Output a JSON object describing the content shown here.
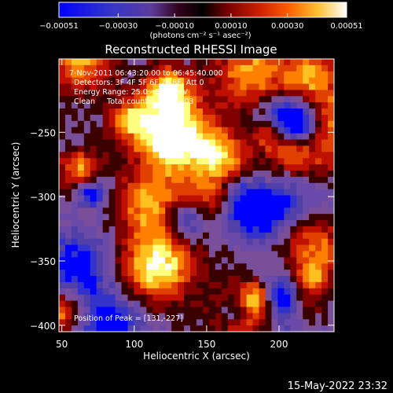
{
  "colorbar": {
    "ticks": [
      "-0.00051",
      "-0.00030",
      "-0.00010",
      "0.00010",
      "0.00030",
      "0.00051"
    ],
    "unit_label": "(photons cm⁻² s⁻¹ asec⁻²)"
  },
  "chart_data": {
    "type": "heatmap",
    "title": "Reconstructed RHESSI Image",
    "xlabel": "Heliocentric X (arcsec)",
    "ylabel": "Heliocentric Y (arcsec)",
    "xlim": [
      48,
      238
    ],
    "ylim": [
      -405,
      -193
    ],
    "x_ticks": [
      "50",
      "100",
      "150",
      "200"
    ],
    "y_ticks": [
      "-250",
      "-300",
      "-350",
      "-400"
    ],
    "colorbar_range": [
      -0.00051,
      0.00051
    ],
    "annotations": [
      "7-Nov-2011 06:43:20.00 to 06:45:40.000",
      "Detectors: 3F 4F 5F 6F 7F 8F, Att 0",
      "Energy Range: 25.0 - 50.0 keV",
      "Clean     Total counts: 3.19E+03",
      "Position of Peak = [131,-227]"
    ],
    "peak_position": [
      131,
      -227
    ],
    "grid": false
  },
  "footer": {
    "date": "15-May-2022 23:32"
  },
  "colors": {
    "background": "#000000",
    "text": "#ffffff",
    "colormap": [
      "#0000ff",
      "#3333cc",
      "#5040a8",
      "#6a4aa8",
      "#7a4f9a",
      "#3a0000",
      "#800000",
      "#c01000",
      "#e04000",
      "#ff8000",
      "#ffc020",
      "#ffff80",
      "#ffffff"
    ]
  }
}
